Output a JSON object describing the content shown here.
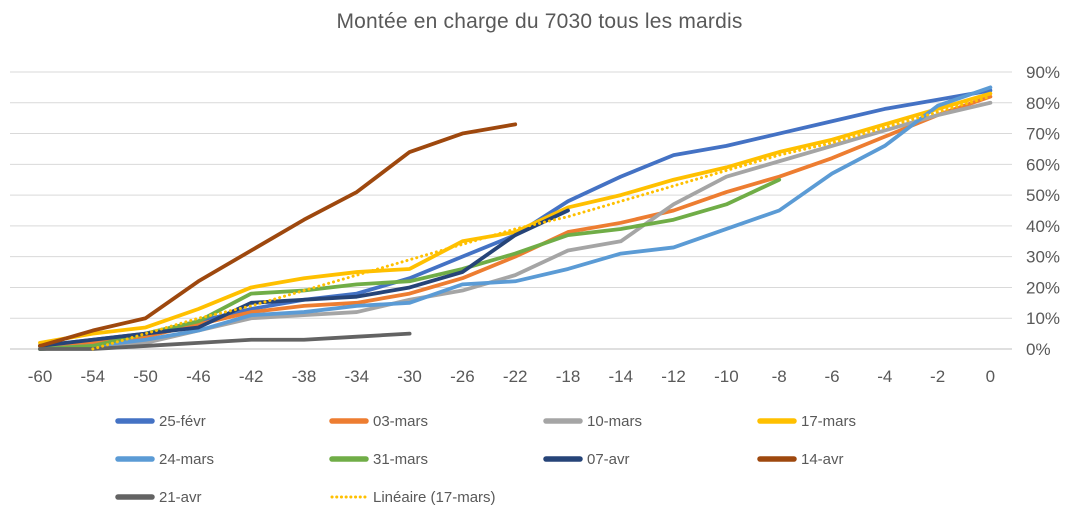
{
  "chart_data": {
    "type": "line",
    "title": "Montée en charge du 7030 tous les mardis",
    "xlabel": "",
    "ylabel": "",
    "ylim": [
      0,
      90
    ],
    "grid": true,
    "legend_position": "bottom",
    "y_ticks": [
      "0%",
      "10%",
      "20%",
      "30%",
      "40%",
      "50%",
      "60%",
      "70%",
      "80%",
      "90%"
    ],
    "categories": [
      "-60",
      "-54",
      "-50",
      "-46",
      "-42",
      "-38",
      "-34",
      "-30",
      "-26",
      "-22",
      "-18",
      "-14",
      "-12",
      "-10",
      "-8",
      "-6",
      "-4",
      "-2",
      "0"
    ],
    "series": [
      {
        "name": "25-févr",
        "color": "#4472C4",
        "dotted": false,
        "values": [
          1,
          3,
          5,
          9,
          13,
          16,
          18,
          23,
          30,
          37,
          48,
          56,
          63,
          66,
          70,
          74,
          78,
          81,
          84
        ]
      },
      {
        "name": "03-mars",
        "color": "#ED7D31",
        "dotted": false,
        "values": [
          1,
          2,
          4,
          8,
          12,
          14,
          15,
          18,
          23,
          30,
          38,
          41,
          45,
          51,
          56,
          62,
          69,
          76,
          82
        ]
      },
      {
        "name": "10-mars",
        "color": "#A5A5A5",
        "dotted": false,
        "values": [
          0,
          1,
          2,
          6,
          10,
          11,
          12,
          16,
          19,
          24,
          32,
          35,
          47,
          56,
          61,
          66,
          71,
          76,
          80
        ]
      },
      {
        "name": "17-mars",
        "color": "#FFC000",
        "dotted": false,
        "values": [
          2,
          5,
          7,
          13,
          20,
          23,
          25,
          26,
          35,
          38,
          46,
          50,
          55,
          59,
          64,
          68,
          73,
          78,
          83
        ]
      },
      {
        "name": "24-mars",
        "color": "#5B9BD5",
        "dotted": false,
        "values": [
          0,
          1,
          3,
          6,
          11,
          12,
          14,
          15,
          21,
          22,
          26,
          31,
          33,
          39,
          45,
          57,
          66,
          79,
          85
        ]
      },
      {
        "name": "31-mars",
        "color": "#70AD47",
        "dotted": false,
        "values": [
          0,
          1,
          5,
          9,
          18,
          19,
          21,
          22,
          26,
          31,
          37,
          39,
          42,
          47,
          55
        ]
      },
      {
        "name": "07-avr",
        "color": "#264478",
        "dotted": false,
        "values": [
          1,
          3,
          5,
          7,
          15,
          16,
          17,
          20,
          25,
          37,
          45
        ]
      },
      {
        "name": "14-avr",
        "color": "#9E480E",
        "dotted": false,
        "values": [
          1,
          6,
          10,
          22,
          32,
          42,
          51,
          64,
          70,
          73
        ]
      },
      {
        "name": "21-avr",
        "color": "#636363",
        "dotted": false,
        "values": [
          0,
          0,
          1,
          2,
          3,
          3,
          4,
          5
        ]
      },
      {
        "name": "Linéaire (17-mars)",
        "color": "#FFC000",
        "dotted": true,
        "values": [
          null,
          0,
          5,
          10,
          14,
          19,
          24,
          29,
          34,
          39,
          43,
          48,
          53,
          58,
          63,
          67,
          72,
          77,
          82
        ]
      }
    ],
    "legend_rows": [
      [
        0,
        1,
        2,
        3
      ],
      [
        4,
        5,
        6,
        7
      ],
      [
        8,
        9
      ]
    ]
  }
}
